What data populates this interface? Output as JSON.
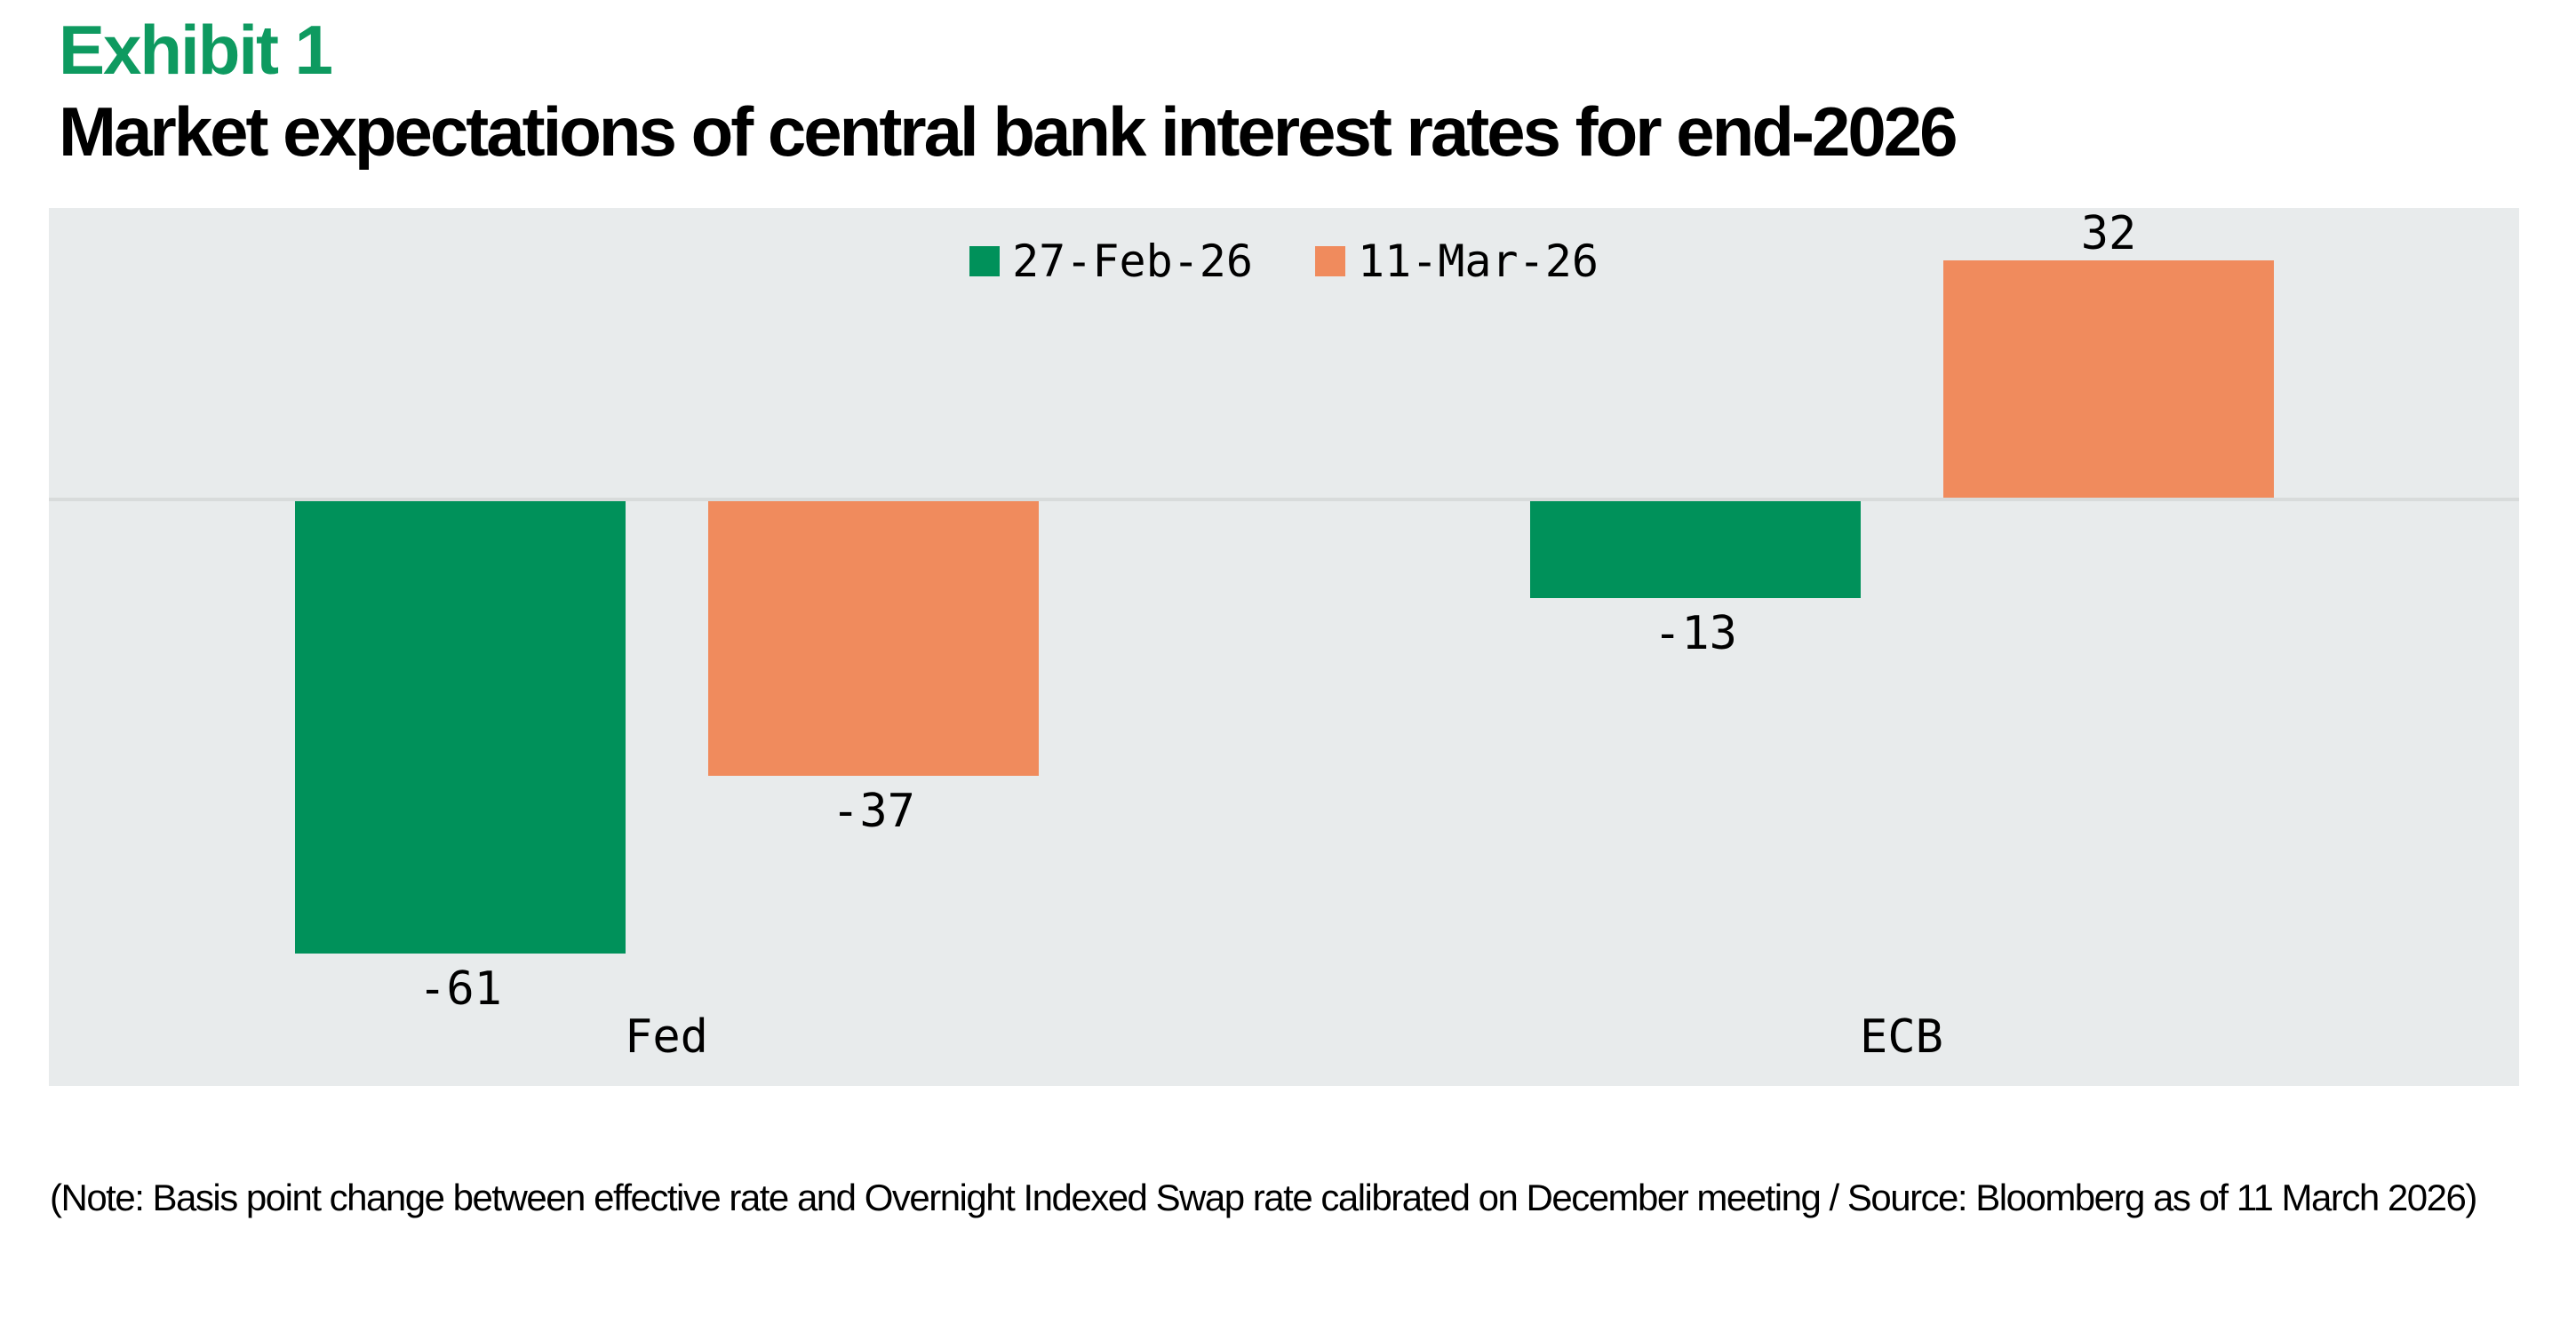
{
  "header": {
    "exhibit_label": "Exhibit 1",
    "title": "Market expectations of central bank interest rates for end-2026"
  },
  "chart_data": {
    "type": "bar",
    "categories": [
      "Fed",
      "ECB"
    ],
    "series": [
      {
        "name": "27-Feb-26",
        "color": "#00915A",
        "values": [
          -61,
          -13
        ]
      },
      {
        "name": "11-Mar-26",
        "color": "#F08B5D",
        "values": [
          -37,
          32
        ]
      }
    ],
    "value_unit": "basis points",
    "xlabel": "",
    "ylabel": "",
    "ylim": [
      -80,
      40
    ],
    "baseline": 0,
    "grid": false,
    "y_axis_visible": false,
    "data_labels": true,
    "legend_position": "top-center"
  },
  "footer": {
    "note": "(Note: Basis point change between effective rate and Overnight Indexed Swap rate calibrated on December meeting / Source: Bloomberg as of 11 March 2026)"
  },
  "colors": {
    "exhibit_label_green": "#0E9A60",
    "series_green": "#00915A",
    "series_orange": "#F08B5D",
    "chart_background": "#E8EBEC",
    "zero_line": "#D8DBDB",
    "text": "#000000",
    "page_background": "#FFFFFF"
  }
}
